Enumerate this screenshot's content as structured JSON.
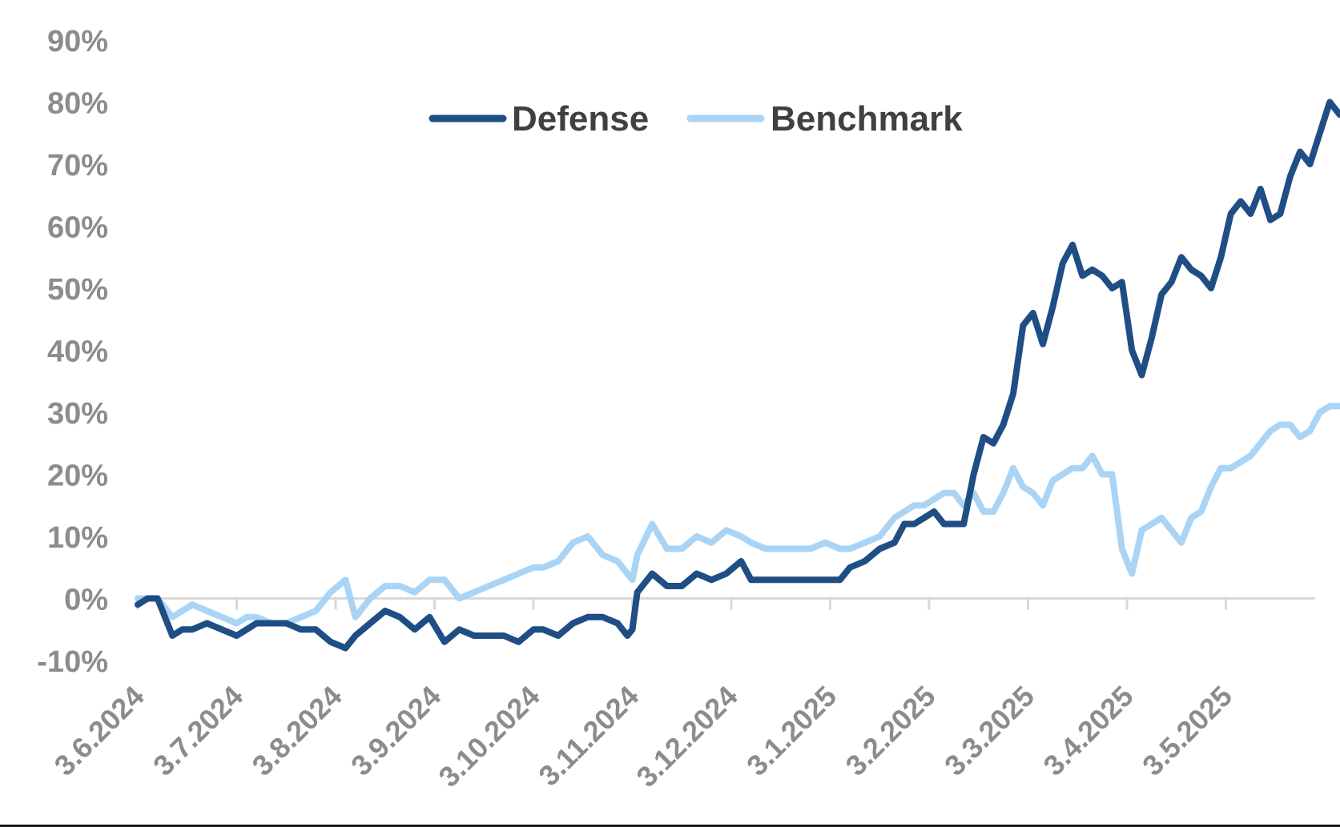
{
  "chart_data": {
    "type": "line",
    "title": "",
    "xlabel": "",
    "ylabel": "",
    "ylim": [
      -10,
      90
    ],
    "y_ticks": [
      "90%",
      "80%",
      "70%",
      "60%",
      "50%",
      "40%",
      "30%",
      "20%",
      "10%",
      "0%",
      "-10%"
    ],
    "y_tick_values": [
      90,
      80,
      70,
      60,
      50,
      40,
      30,
      20,
      10,
      0,
      -10
    ],
    "x_tick_labels": [
      "3.6.2024",
      "3.7.2024",
      "3.8.2024",
      "3.9.2024",
      "3.10.2024",
      "3.11.2024",
      "3.12.2024",
      "3.1.2025",
      "3.2.2025",
      "3.3.2025",
      "3.4.2025",
      "3.5.2025"
    ],
    "x_range_months": [
      0,
      12.2
    ],
    "legend_position": "top-center",
    "grid": false,
    "series": [
      {
        "name": "Defense",
        "color": "#1f4e85",
        "x": [
          0,
          0.1,
          0.2,
          0.35,
          0.45,
          0.55,
          0.7,
          0.85,
          1.0,
          1.1,
          1.2,
          1.35,
          1.5,
          1.65,
          1.8,
          1.95,
          2.1,
          2.2,
          2.35,
          2.5,
          2.65,
          2.8,
          2.95,
          3.1,
          3.25,
          3.4,
          3.55,
          3.7,
          3.85,
          4.0,
          4.1,
          4.25,
          4.4,
          4.55,
          4.7,
          4.85,
          4.95,
          5.0,
          5.05,
          5.2,
          5.35,
          5.5,
          5.65,
          5.8,
          5.95,
          6.1,
          6.2,
          6.35,
          6.5,
          6.65,
          6.8,
          6.95,
          7.1,
          7.2,
          7.35,
          7.5,
          7.65,
          7.75,
          7.85,
          7.95,
          8.05,
          8.15,
          8.25,
          8.35,
          8.45,
          8.55,
          8.65,
          8.75,
          8.85,
          8.95,
          9.05,
          9.15,
          9.25,
          9.35,
          9.45,
          9.55,
          9.65,
          9.75,
          9.85,
          9.95,
          10.05,
          10.15,
          10.25,
          10.35,
          10.45,
          10.55,
          10.65,
          10.75,
          10.85,
          10.95,
          11.05,
          11.15,
          11.25,
          11.35,
          11.45,
          11.55,
          11.65,
          11.75,
          11.85,
          11.95,
          12.05,
          12.15,
          12.2
        ],
        "values": [
          -1,
          0,
          0,
          -6,
          -5,
          -5,
          -4,
          -5,
          -6,
          -5,
          -4,
          -4,
          -4,
          -5,
          -5,
          -7,
          -8,
          -6,
          -4,
          -2,
          -3,
          -5,
          -3,
          -7,
          -5,
          -6,
          -6,
          -6,
          -7,
          -5,
          -5,
          -6,
          -4,
          -3,
          -3,
          -4,
          -6,
          -5,
          1,
          4,
          2,
          2,
          4,
          3,
          4,
          6,
          3,
          3,
          3,
          3,
          3,
          3,
          3,
          5,
          6,
          8,
          9,
          12,
          12,
          13,
          14,
          12,
          12,
          12,
          20,
          26,
          25,
          28,
          33,
          44,
          46,
          41,
          47,
          54,
          57,
          52,
          53,
          52,
          50,
          51,
          40,
          36,
          42,
          49,
          51,
          55,
          53,
          52,
          50,
          55,
          62,
          64,
          62,
          66,
          61,
          62,
          68,
          72,
          70,
          75,
          80,
          78,
          78
        ]
      },
      {
        "name": "Benchmark",
        "color": "#a9d4f5",
        "x": [
          0,
          0.1,
          0.2,
          0.35,
          0.45,
          0.55,
          0.7,
          0.85,
          1.0,
          1.1,
          1.2,
          1.35,
          1.5,
          1.65,
          1.8,
          1.95,
          2.1,
          2.2,
          2.35,
          2.5,
          2.65,
          2.8,
          2.95,
          3.1,
          3.25,
          3.4,
          3.55,
          3.7,
          3.85,
          4.0,
          4.1,
          4.25,
          4.4,
          4.55,
          4.7,
          4.85,
          4.95,
          5.0,
          5.05,
          5.2,
          5.35,
          5.5,
          5.65,
          5.8,
          5.95,
          6.1,
          6.2,
          6.35,
          6.5,
          6.65,
          6.8,
          6.95,
          7.1,
          7.2,
          7.35,
          7.5,
          7.65,
          7.75,
          7.85,
          7.95,
          8.05,
          8.15,
          8.25,
          8.35,
          8.45,
          8.55,
          8.65,
          8.75,
          8.85,
          8.95,
          9.05,
          9.15,
          9.25,
          9.35,
          9.45,
          9.55,
          9.65,
          9.75,
          9.85,
          9.95,
          10.05,
          10.15,
          10.25,
          10.35,
          10.45,
          10.55,
          10.65,
          10.75,
          10.85,
          10.95,
          11.05,
          11.15,
          11.25,
          11.35,
          11.45,
          11.55,
          11.65,
          11.75,
          11.85,
          11.95,
          12.05,
          12.15,
          12.2
        ],
        "values": [
          0,
          0,
          0,
          -3,
          -2,
          -1,
          -2,
          -3,
          -4,
          -3,
          -3,
          -4,
          -4,
          -3,
          -2,
          1,
          3,
          -3,
          0,
          2,
          2,
          1,
          3,
          3,
          0,
          1,
          2,
          3,
          4,
          5,
          5,
          6,
          9,
          10,
          7,
          6,
          4,
          3,
          7,
          12,
          8,
          8,
          10,
          9,
          11,
          10,
          9,
          8,
          8,
          8,
          8,
          9,
          8,
          8,
          9,
          10,
          13,
          14,
          15,
          15,
          16,
          17,
          17,
          15,
          17,
          14,
          14,
          17,
          21,
          18,
          17,
          15,
          19,
          20,
          21,
          21,
          23,
          20,
          20,
          8,
          4,
          11,
          12,
          13,
          11,
          9,
          13,
          14,
          18,
          21,
          21,
          22,
          23,
          25,
          27,
          28,
          28,
          26,
          27,
          30,
          31,
          31,
          31
        ]
      }
    ]
  }
}
